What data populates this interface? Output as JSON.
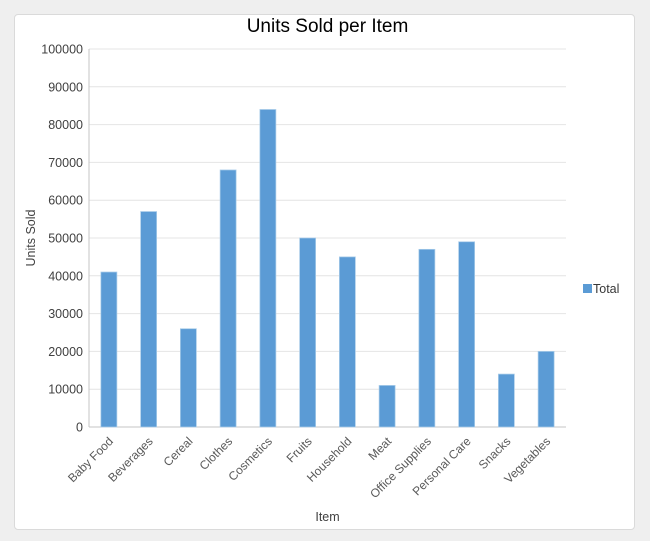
{
  "window": {
    "background_color": "#efefef",
    "panel_background": "#ffffff",
    "panel_border_color": "#dadada"
  },
  "chart_data": {
    "type": "bar",
    "title": "Units Sold per Item",
    "xlabel": "Item",
    "ylabel": "Units Sold",
    "categories": [
      "Baby Food",
      "Beverages",
      "Cereal",
      "Clothes",
      "Cosmetics",
      "Fruits",
      "Household",
      "Meat",
      "Office Supplies",
      "Personal Care",
      "Snacks",
      "Vegetables"
    ],
    "series": [
      {
        "name": "Total",
        "values": [
          41000,
          57000,
          26000,
          68000,
          84000,
          50000,
          45000,
          11000,
          47000,
          49000,
          14000,
          20000
        ]
      }
    ],
    "ylim": [
      0,
      100000
    ],
    "ytick_step": 10000,
    "ytick_labels": [
      "0",
      "10000",
      "20000",
      "30000",
      "40000",
      "50000",
      "60000",
      "70000",
      "80000",
      "90000",
      "100000"
    ],
    "grid": "horizontal",
    "legend_position": "right",
    "colors": {
      "bar_fill": "#5B9BD5",
      "bar_border": "#A9CCE9",
      "gridline": "#e4e4e4",
      "axis_line": "#c6c6c6",
      "tick_label": "#404040",
      "category_label": "#595959",
      "title": "#000000"
    }
  }
}
